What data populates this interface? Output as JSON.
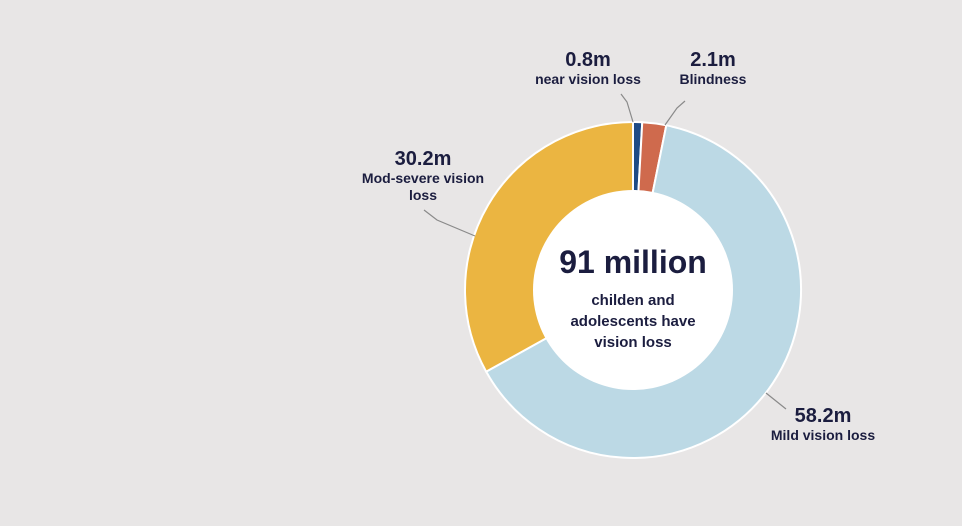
{
  "chart_data": {
    "type": "pie",
    "variant": "donut",
    "categories": [
      "near vision loss",
      "Blindness",
      "Mild vision loss",
      "Mod-severe vision loss"
    ],
    "values": [
      0.8,
      2.1,
      58.2,
      30.2
    ],
    "units": "million",
    "value_labels": [
      "0.8m",
      "2.1m",
      "58.2m",
      "30.2m"
    ],
    "colors": [
      "#1f4b85",
      "#cf6a4d",
      "#bcd9e5",
      "#ebb541"
    ],
    "center_title": "91 million",
    "center_subtitle": "childen and adolescents have vision loss",
    "legend": "none"
  },
  "labels": {
    "near": {
      "value": "0.8m",
      "name": "near vision loss"
    },
    "blindness": {
      "value": "2.1m",
      "name": "Blindness"
    },
    "mod_severe": {
      "value": "30.2m",
      "name": "Mod-severe vision loss"
    },
    "mild": {
      "value": "58.2m",
      "name": "Mild vision loss"
    }
  },
  "colors": {
    "background": "#e8e6e6",
    "text": "#1b1d3f",
    "leader": "#8a8a8a",
    "center_fill": "#ffffff"
  }
}
